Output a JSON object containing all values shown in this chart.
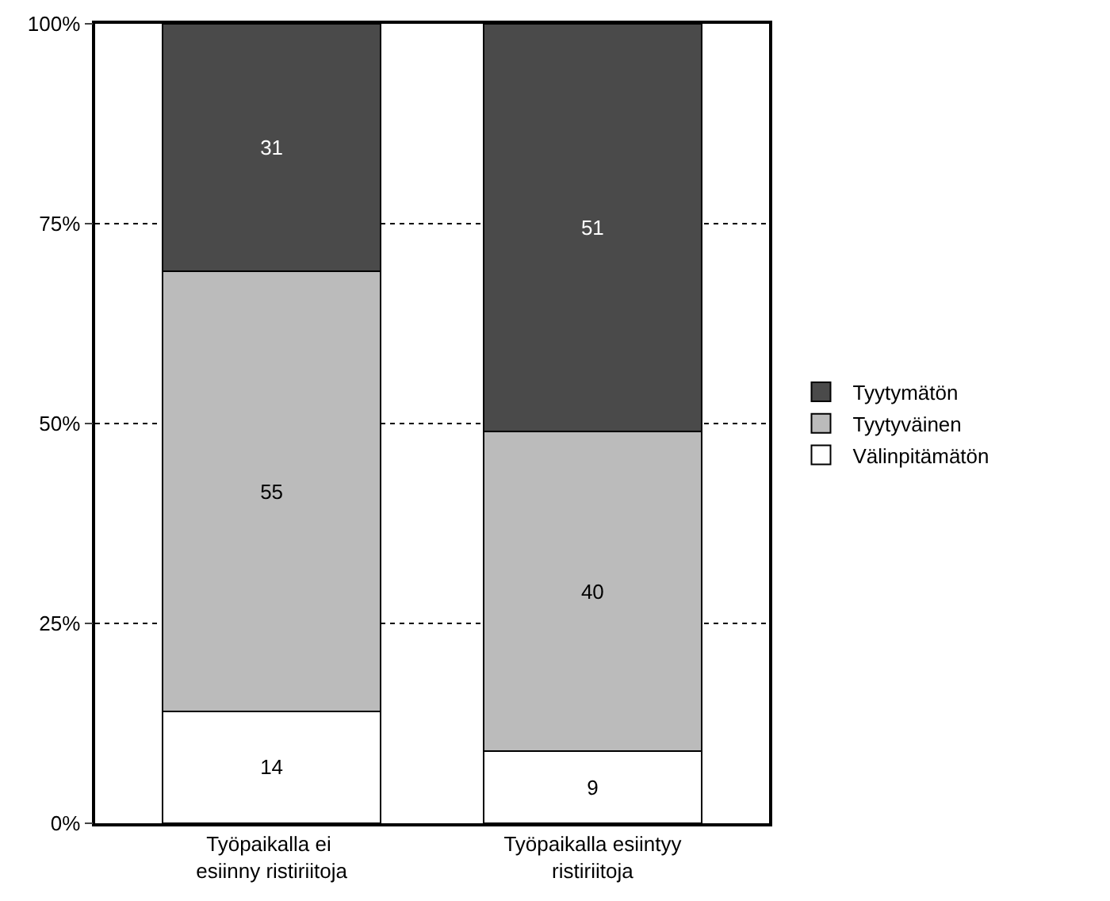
{
  "chart_data": {
    "type": "bar",
    "stacked": true,
    "categories": [
      "Työpaikalla ei esiinny ristiriitoja",
      "Työpaikalla esiintyy ristiriitoja"
    ],
    "series": [
      {
        "name": "Välinpitämätön",
        "color": "#ffffff",
        "values": [
          14,
          9
        ]
      },
      {
        "name": "Tyytyväinen",
        "color": "#bbbbbb",
        "values": [
          55,
          40
        ]
      },
      {
        "name": "Tyytymätön",
        "color": "#4a4a4a",
        "values": [
          31,
          51
        ]
      }
    ],
    "ylim": [
      0,
      100
    ],
    "yticks": [
      {
        "value": 0,
        "label": "0%"
      },
      {
        "value": 25,
        "label": "25%"
      },
      {
        "value": 50,
        "label": "50%"
      },
      {
        "value": 75,
        "label": "75%"
      },
      {
        "value": 100,
        "label": "100%"
      }
    ],
    "grid": "y",
    "legend": "right",
    "data_labels": true
  }
}
